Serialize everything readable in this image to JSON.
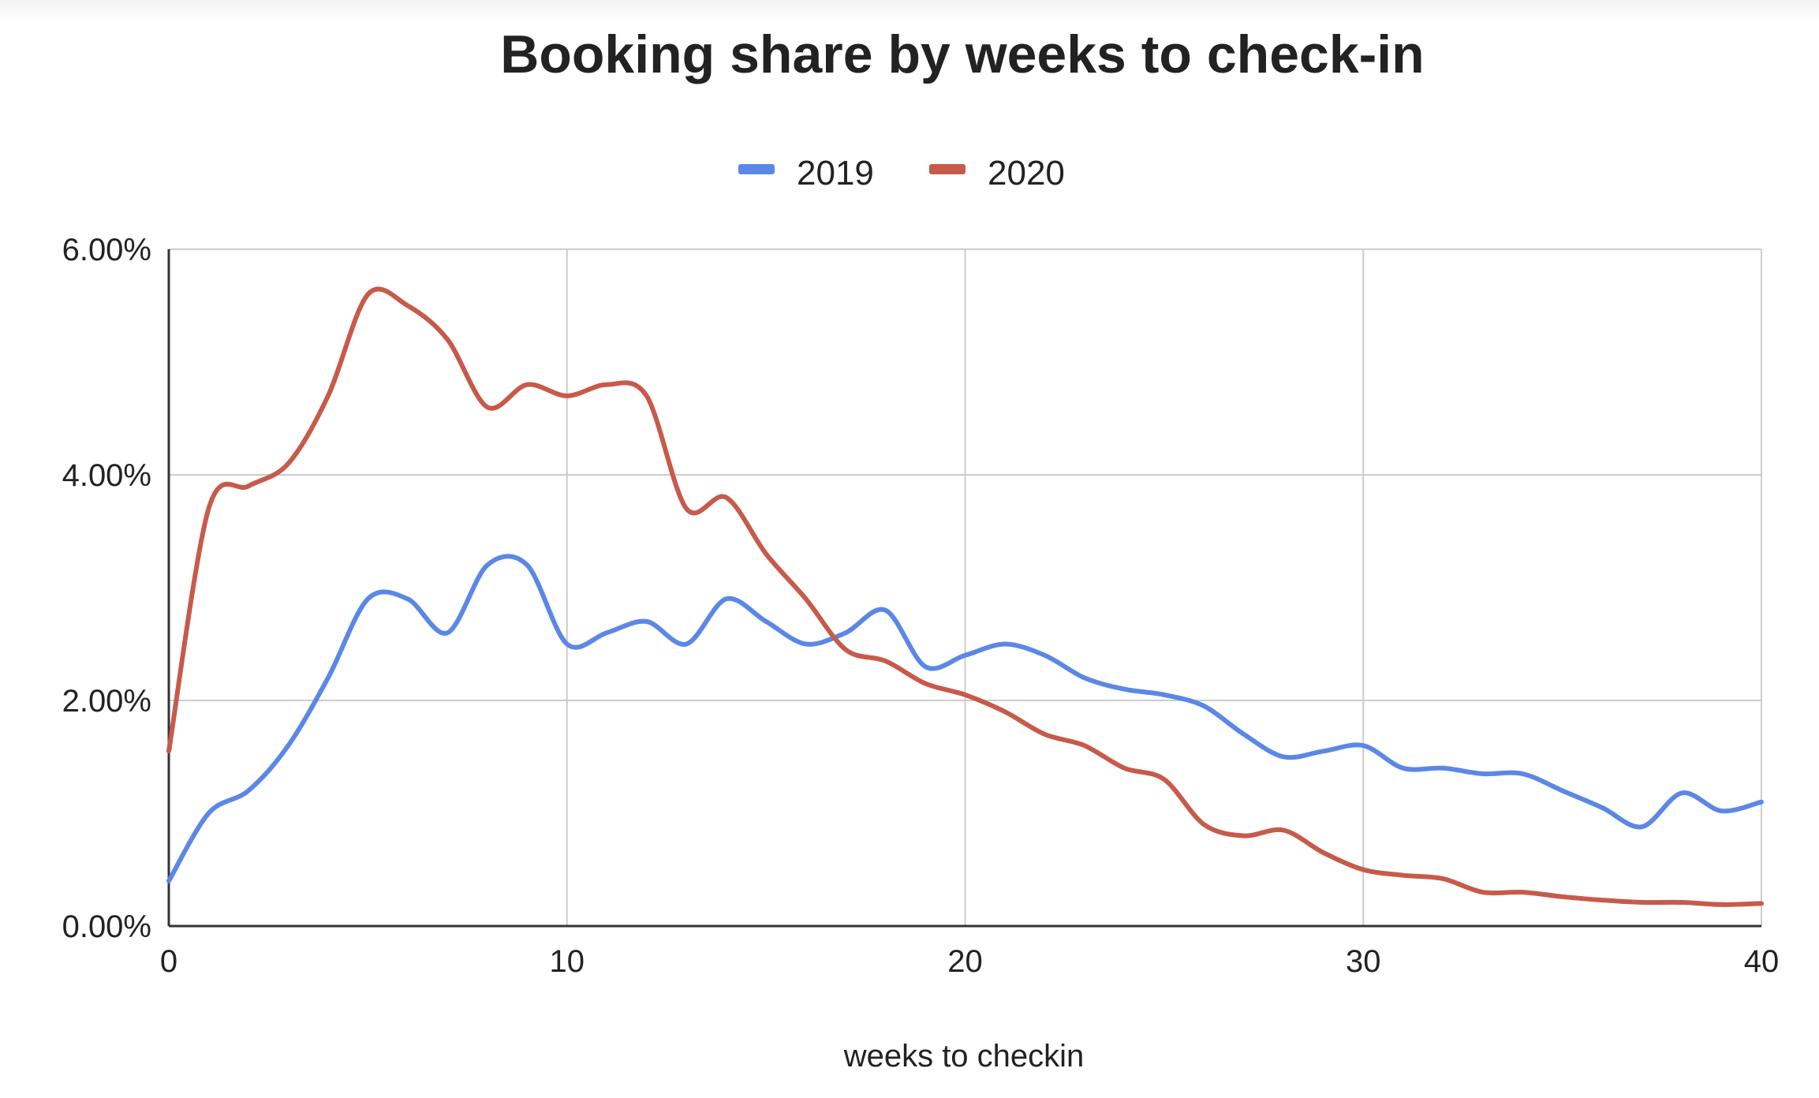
{
  "chart_data": {
    "type": "line",
    "title": "Booking share by weeks to check-in",
    "xlabel": "weeks to checkin",
    "ylabel": "",
    "xlim": [
      0,
      40
    ],
    "ylim": [
      0,
      0.06
    ],
    "grid": true,
    "legend_position": "top",
    "x_ticks": [
      0,
      10,
      20,
      30,
      40
    ],
    "x_tick_labels": [
      "0",
      "10",
      "20",
      "30",
      "40"
    ],
    "y_ticks": [
      0,
      0.02,
      0.04,
      0.06
    ],
    "y_tick_labels": [
      "0.00%",
      "2.00%",
      "4.00%",
      "6.00%"
    ],
    "x": [
      0,
      1,
      2,
      3,
      4,
      5,
      6,
      7,
      8,
      9,
      10,
      11,
      12,
      13,
      14,
      15,
      16,
      17,
      18,
      19,
      20,
      21,
      22,
      23,
      24,
      25,
      26,
      27,
      28,
      29,
      30,
      31,
      32,
      33,
      34,
      35,
      36,
      37,
      38,
      39,
      40
    ],
    "series": [
      {
        "name": "2019",
        "color": "#5b87e6",
        "values": [
          0.004,
          0.01,
          0.012,
          0.016,
          0.022,
          0.029,
          0.029,
          0.026,
          0.032,
          0.032,
          0.025,
          0.026,
          0.027,
          0.025,
          0.029,
          0.027,
          0.025,
          0.026,
          0.028,
          0.023,
          0.024,
          0.025,
          0.024,
          0.022,
          0.021,
          0.0205,
          0.0195,
          0.017,
          0.015,
          0.0155,
          0.016,
          0.014,
          0.014,
          0.0135,
          0.0135,
          0.012,
          0.0105,
          0.0088,
          0.0118,
          0.0102,
          0.011
        ]
      },
      {
        "name": "2020",
        "color": "#c75a4a",
        "values": [
          0.0155,
          0.037,
          0.039,
          0.041,
          0.047,
          0.056,
          0.055,
          0.052,
          0.046,
          0.048,
          0.047,
          0.048,
          0.047,
          0.037,
          0.038,
          0.033,
          0.029,
          0.0245,
          0.0235,
          0.0215,
          0.0205,
          0.019,
          0.017,
          0.016,
          0.014,
          0.013,
          0.009,
          0.008,
          0.0085,
          0.0065,
          0.005,
          0.0045,
          0.0042,
          0.003,
          0.003,
          0.0026,
          0.0023,
          0.0021,
          0.0021,
          0.0019,
          0.002
        ]
      }
    ]
  }
}
